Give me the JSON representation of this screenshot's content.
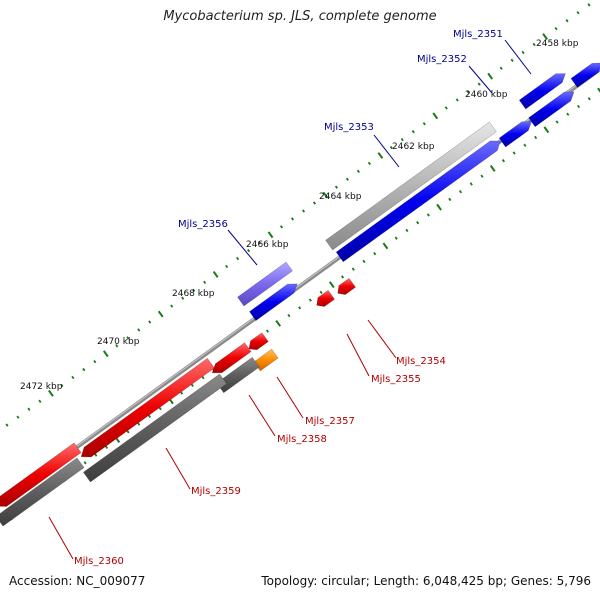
{
  "header": {
    "title": "Mycobacterium sp. JLS, complete genome"
  },
  "footer": {
    "accession_label": "Accession:",
    "accession": "NC_009077",
    "topology_label": "Topology:",
    "topology": "circular",
    "length_label": "Length:",
    "length": "6,048,425 bp",
    "genes_label": "Genes:",
    "genes": "5,796"
  },
  "colors": {
    "forward_gene": "#0000ee",
    "reverse_gene": "#ee0000",
    "pseudo_gene": "#aaaaaa",
    "rna_gene": "#ff8c00",
    "misc_feature": "#7b68ee",
    "backbone": "#888888",
    "tick": "#1a7a1a",
    "forward_label": "#00008b",
    "reverse_label": "#b00000"
  },
  "scale_labels": [
    {
      "text": "2458 kbp"
    },
    {
      "text": "2460 kbp"
    },
    {
      "text": "2462 kbp"
    },
    {
      "text": "2464 kbp"
    },
    {
      "text": "2466 kbp"
    },
    {
      "text": "2468 kbp"
    },
    {
      "text": "2470 kbp"
    },
    {
      "text": "2472 kbp"
    }
  ],
  "gene_labels": [
    {
      "text": "Mjls_2351",
      "strand": "forward"
    },
    {
      "text": "Mjls_2352",
      "strand": "forward"
    },
    {
      "text": "Mjls_2353",
      "strand": "forward"
    },
    {
      "text": "Mjls_2356",
      "strand": "forward"
    },
    {
      "text": "Mjls_2354",
      "strand": "reverse"
    },
    {
      "text": "Mjls_2355",
      "strand": "reverse"
    },
    {
      "text": "Mjls_2357",
      "strand": "reverse"
    },
    {
      "text": "Mjls_2358",
      "strand": "reverse"
    },
    {
      "text": "Mjls_2359",
      "strand": "reverse"
    },
    {
      "text": "Mjls_2360",
      "strand": "reverse"
    }
  ]
}
